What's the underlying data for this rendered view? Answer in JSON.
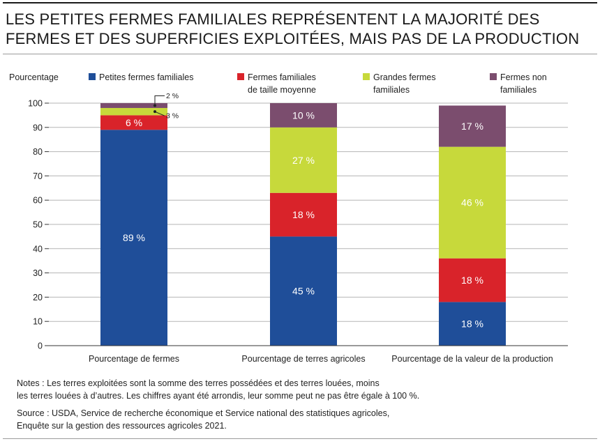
{
  "title": {
    "line1": "LES PETITES FERMES FAMILIALES REPRÉSENTENT LA MAJORITÉ DES",
    "line2": "FERMES ET DES SUPERFICIES EXPLOITÉES, MAIS PAS DE LA PRODUCTION"
  },
  "notes": {
    "line1": "Notes : Les terres exploitées sont la somme des terres possédées et des terres louées, moins",
    "line2": "les terres louées à d’autres. Les chiffres ayant été arrondis, leur somme peut ne pas être égale à 100 %."
  },
  "source": {
    "line1": "Source : USDA, Service de recherche économique et Service national des statistiques agricoles,",
    "line2": "Enquête sur la gestion des ressources agricoles 2021."
  },
  "chart_data": {
    "type": "bar",
    "stacked": true,
    "ylabel": "Pourcentage",
    "ylim": [
      0,
      100
    ],
    "yticks": [
      "0",
      "10",
      "20",
      "30",
      "40",
      "50",
      "60",
      "70",
      "80",
      "90",
      "100"
    ],
    "grid": true,
    "legend_position": "top",
    "categories": [
      "Pourcentage de fermes",
      "Pourcentage de terres agricoles",
      "Pourcentage de la valeur de la production"
    ],
    "series": [
      {
        "name": "Petites fermes familiales",
        "color": "#1f4e99",
        "values": [
          89,
          45,
          18
        ],
        "labels": [
          "89 %",
          "45 %",
          "18 %"
        ]
      },
      {
        "name": "Fermes familiales de taille moyenne",
        "color": "#d9232a",
        "values": [
          6,
          18,
          18
        ],
        "labels": [
          "6 %",
          "18 %",
          "18 %"
        ]
      },
      {
        "name": "Grandes fermes familiales",
        "color": "#c7d93b",
        "values": [
          3,
          27,
          46
        ],
        "labels": [
          "3 %",
          "27 %",
          "46 %"
        ]
      },
      {
        "name": "Fermes non familiales",
        "color": "#7b4d6e",
        "values": [
          2,
          10,
          17
        ],
        "labels": [
          "2 %",
          "10 %",
          "17 %"
        ]
      }
    ],
    "legend_lines": [
      [
        "Petites fermes familiales"
      ],
      [
        "Fermes familiales",
        "de taille moyenne"
      ],
      [
        "Grandes fermes",
        "familiales"
      ],
      [
        "Fermes non",
        "familiales"
      ]
    ]
  }
}
